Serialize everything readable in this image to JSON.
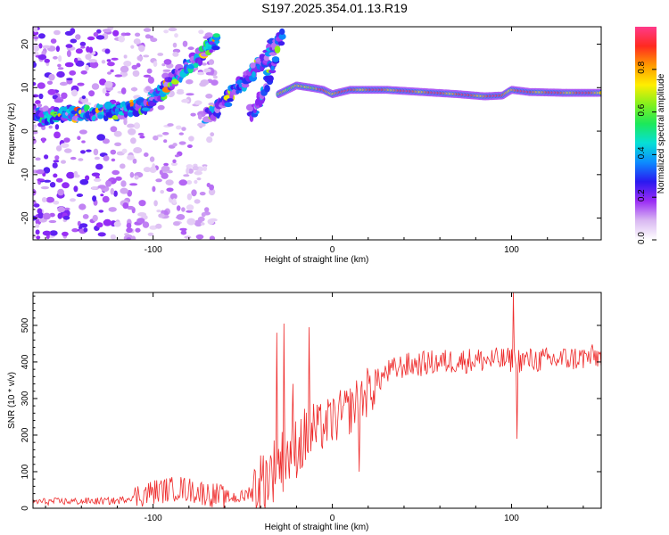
{
  "figure": {
    "title": "S197.2025.354.01.13.R19"
  },
  "colors": {
    "snr_line": "#ee2b2b",
    "colorbar_stops": [
      "#ffffff",
      "#d9b8f2",
      "#9a2cf5",
      "#2a19f0",
      "#0c8cff",
      "#06e0d5",
      "#1ce85a",
      "#84f01e",
      "#ffee00",
      "#ff9a00",
      "#ff2a20",
      "#ff3a8a"
    ]
  },
  "chart_data": [
    {
      "type": "heatmap",
      "title": "",
      "xlabel": "Height of straight line (km)",
      "ylabel": "Frequency (Hz)",
      "xlim": [
        -167,
        150
      ],
      "ylim": [
        -25,
        24
      ],
      "xticks": [
        -100,
        0,
        100
      ],
      "yticks": [
        -20,
        -10,
        0,
        10,
        20
      ],
      "colorbar": {
        "label": "Normalized spectral amplitude",
        "range": [
          0,
          1
        ],
        "ticks": [
          "0.0",
          "0.2",
          "0.4",
          "0.6",
          "0.8"
        ],
        "tick_values": [
          0.0,
          0.2,
          0.4,
          0.6,
          0.8
        ]
      },
      "features": [
        {
          "name": "scatter",
          "x_range": [
            -167,
            -95
          ],
          "f_range": [
            -25,
            24
          ],
          "amp": 0.12
        },
        {
          "name": "rising_band_low",
          "points": [
            [
              -165,
              3.5
            ],
            [
              -140,
              4
            ],
            [
              -120,
              4.5
            ],
            [
              -105,
              6
            ],
            [
              -95,
              9
            ],
            [
              -88,
              12
            ],
            [
              -80,
              15
            ],
            [
              -72,
              18
            ],
            [
              -64,
              21
            ]
          ],
          "amp": 0.35
        },
        {
          "name": "rising_band_mid",
          "points": [
            [
              -70,
              3.5
            ],
            [
              -62,
              6
            ],
            [
              -55,
              9
            ],
            [
              -48,
              12
            ],
            [
              -42,
              15
            ],
            [
              -36,
              18
            ],
            [
              -30,
              21
            ]
          ],
          "amp": 0.3
        },
        {
          "name": "rising_band_high",
          "points": [
            [
              -45,
              4
            ],
            [
              -40,
              8
            ],
            [
              -36,
              12
            ],
            [
              -33,
              16
            ],
            [
              -30,
              20
            ],
            [
              -28,
              24
            ]
          ],
          "amp": 0.25
        },
        {
          "name": "steady_line",
          "points": [
            [
              -30,
              8.5
            ],
            [
              -20,
              10.5
            ],
            [
              -12,
              10
            ],
            [
              -5,
              9.5
            ],
            [
              0,
              8.5
            ],
            [
              10,
              9.5
            ],
            [
              30,
              9.5
            ],
            [
              50,
              9
            ],
            [
              70,
              8.5
            ],
            [
              85,
              8
            ],
            [
              95,
              8.2
            ],
            [
              100,
              9.5
            ],
            [
              110,
              9
            ],
            [
              130,
              8.8
            ],
            [
              150,
              8.8
            ]
          ],
          "amp": 0.95
        }
      ]
    },
    {
      "type": "line",
      "title": "",
      "xlabel": "Height of straight line (km)",
      "ylabel": "SNR (10 * v/v)",
      "xlim": [
        -167,
        150
      ],
      "ylim": [
        0,
        590
      ],
      "xticks": [
        -100,
        0,
        100
      ],
      "yticks": [
        0,
        100,
        200,
        300,
        400,
        500
      ],
      "series": [
        {
          "trend": [
            [
              -167,
              18
            ],
            [
              -120,
              20
            ],
            [
              -100,
              45
            ],
            [
              -85,
              55
            ],
            [
              -70,
              40
            ],
            [
              -60,
              30
            ],
            [
              -50,
              30
            ],
            [
              -40,
              70
            ],
            [
              -30,
              120
            ],
            [
              -20,
              170
            ],
            [
              -10,
              210
            ],
            [
              0,
              240
            ],
            [
              10,
              270
            ],
            [
              20,
              320
            ],
            [
              30,
              370
            ],
            [
              40,
              390
            ],
            [
              50,
              395
            ],
            [
              60,
              400
            ],
            [
              80,
              405
            ],
            [
              100,
              405
            ],
            [
              120,
              405
            ],
            [
              150,
              415
            ]
          ],
          "spikes": [
            [
              -31,
              480
            ],
            [
              -27,
              505
            ],
            [
              -22,
              340
            ],
            [
              -13,
              495
            ],
            [
              15,
              100
            ],
            [
              101,
              590
            ],
            [
              103,
              190
            ]
          ]
        }
      ]
    }
  ]
}
